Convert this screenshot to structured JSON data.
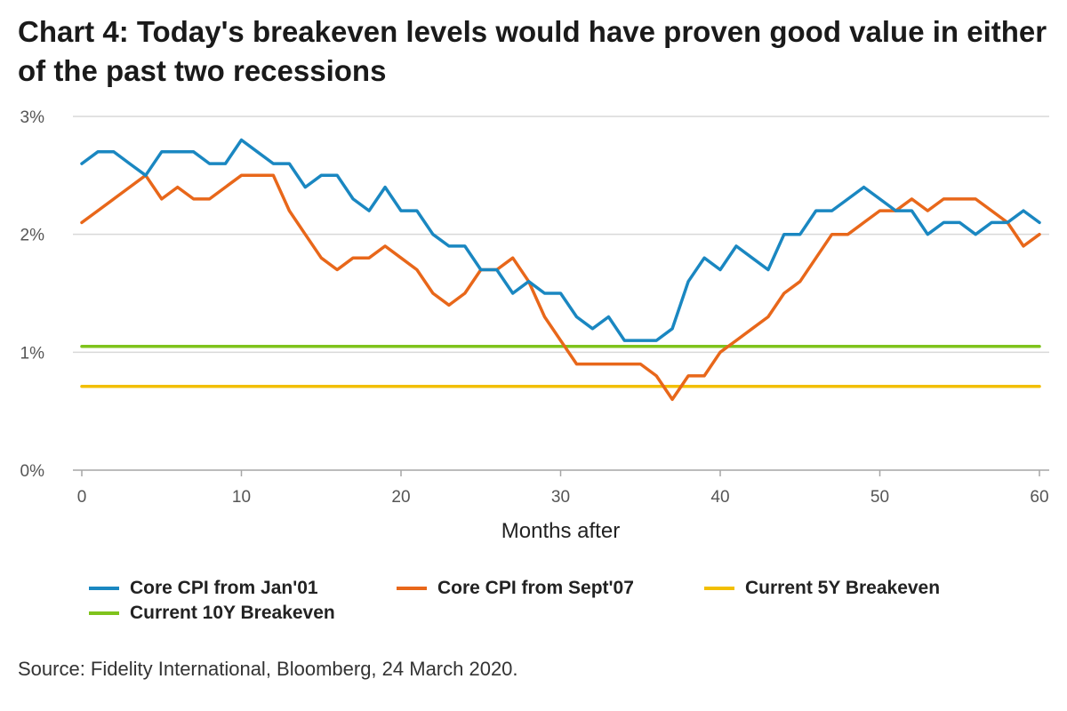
{
  "header": {
    "title": "Chart 4: Today's breakeven levels would have proven good value in either of the past two recessions"
  },
  "footer": {
    "source": "Source: Fidelity International, Bloomberg, 24 March 2020."
  },
  "chart_data": {
    "type": "line",
    "title": "Chart 4: Today's breakeven levels would have proven good value in either of the past two recessions",
    "xlabel": "Months after",
    "ylabel": "",
    "xlim": [
      0,
      60
    ],
    "ylim": [
      0,
      3
    ],
    "x_ticks": [
      0,
      10,
      20,
      30,
      40,
      50,
      60
    ],
    "y_ticks": [
      0,
      1,
      2,
      3
    ],
    "y_tick_labels": [
      "0%",
      "1%",
      "2%",
      "3%"
    ],
    "grid": "horizontal",
    "legend_placement": "bottom",
    "series": [
      {
        "name": "Core CPI from Jan'01",
        "color": "#1a87c1",
        "x": [
          0,
          1,
          2,
          3,
          4,
          5,
          6,
          7,
          8,
          9,
          10,
          11,
          12,
          13,
          14,
          15,
          16,
          17,
          18,
          19,
          20,
          21,
          22,
          23,
          24,
          25,
          26,
          27,
          28,
          29,
          30,
          31,
          32,
          33,
          34,
          35,
          36,
          37,
          38,
          39,
          40,
          41,
          42,
          43,
          44,
          45,
          46,
          47,
          48,
          49,
          50,
          51,
          52,
          53,
          54,
          55,
          56,
          57,
          58,
          59,
          60
        ],
        "values": [
          2.6,
          2.7,
          2.7,
          2.6,
          2.5,
          2.7,
          2.7,
          2.7,
          2.6,
          2.6,
          2.8,
          2.7,
          2.6,
          2.6,
          2.4,
          2.5,
          2.5,
          2.3,
          2.2,
          2.4,
          2.2,
          2.2,
          2.0,
          1.9,
          1.9,
          1.7,
          1.7,
          1.5,
          1.6,
          1.5,
          1.5,
          1.3,
          1.2,
          1.3,
          1.1,
          1.1,
          1.1,
          1.2,
          1.6,
          1.8,
          1.7,
          1.9,
          1.8,
          1.7,
          2.0,
          2.0,
          2.2,
          2.2,
          2.3,
          2.4,
          2.3,
          2.2,
          2.2,
          2.0,
          2.1,
          2.1,
          2.0,
          2.1,
          2.1,
          2.2,
          2.1
        ]
      },
      {
        "name": "Core CPI from Sept'07",
        "color": "#e8671a",
        "x": [
          0,
          1,
          2,
          3,
          4,
          5,
          6,
          7,
          8,
          9,
          10,
          11,
          12,
          13,
          14,
          15,
          16,
          17,
          18,
          19,
          20,
          21,
          22,
          23,
          24,
          25,
          26,
          27,
          28,
          29,
          30,
          31,
          32,
          33,
          34,
          35,
          36,
          37,
          38,
          39,
          40,
          41,
          42,
          43,
          44,
          45,
          46,
          47,
          48,
          49,
          50,
          51,
          52,
          53,
          54,
          55,
          56,
          57,
          58,
          59,
          60
        ],
        "values": [
          2.1,
          2.2,
          2.3,
          2.4,
          2.5,
          2.3,
          2.4,
          2.3,
          2.3,
          2.4,
          2.5,
          2.5,
          2.5,
          2.2,
          2.0,
          1.8,
          1.7,
          1.8,
          1.8,
          1.9,
          1.8,
          1.7,
          1.5,
          1.4,
          1.5,
          1.7,
          1.7,
          1.8,
          1.6,
          1.3,
          1.1,
          0.9,
          0.9,
          0.9,
          0.9,
          0.9,
          0.8,
          0.6,
          0.8,
          0.8,
          1.0,
          1.1,
          1.2,
          1.3,
          1.5,
          1.6,
          1.8,
          2.0,
          2.0,
          2.1,
          2.2,
          2.2,
          2.3,
          2.2,
          2.3,
          2.3,
          2.3,
          2.2,
          2.1,
          1.9,
          2.0
        ]
      },
      {
        "name": "Current 5Y Breakeven",
        "color": "#f2bf00",
        "x": [
          0,
          60
        ],
        "values": [
          0.71,
          0.71
        ]
      },
      {
        "name": "Current 10Y Breakeven",
        "color": "#7fc31c",
        "x": [
          0,
          60
        ],
        "values": [
          1.05,
          1.05
        ]
      }
    ]
  }
}
